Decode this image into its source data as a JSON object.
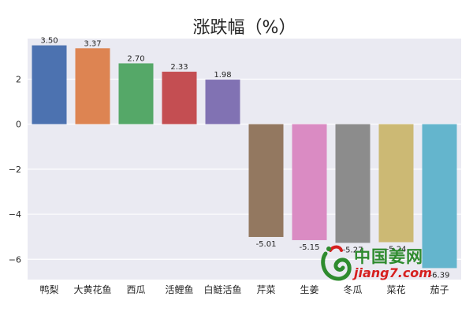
{
  "chart_data": {
    "type": "bar",
    "title": "涨跌幅（%）",
    "xlabel": "",
    "ylabel": "",
    "categories": [
      "鸭梨",
      "大黄花鱼",
      "西瓜",
      "活鲤鱼",
      "白鲢活鱼",
      "芹菜",
      "生姜",
      "冬瓜",
      "菜花",
      "茄子"
    ],
    "values": [
      3.5,
      3.37,
      2.7,
      2.33,
      1.98,
      -5.01,
      -5.15,
      -5.27,
      -5.24,
      -6.39
    ],
    "value_labels": [
      "3.50",
      "3.37",
      "2.70",
      "2.33",
      "1.98",
      "-5.01",
      "-5.15",
      "-5.27",
      "-5.24",
      "-6.39"
    ],
    "colors": [
      "#4c72b0",
      "#dd8452",
      "#55a868",
      "#c44e52",
      "#8172b3",
      "#937860",
      "#da8bc3",
      "#8c8c8c",
      "#ccb974",
      "#64b5cd"
    ],
    "ylim": [
      -6.9,
      3.8
    ],
    "yticks": [
      -6,
      -4,
      -2,
      0,
      2
    ],
    "grid": true,
    "background": "#eaeaf2",
    "gridcolor": "#ffffff"
  },
  "watermark": {
    "name": "中国姜网",
    "url": "jiang7.com"
  }
}
